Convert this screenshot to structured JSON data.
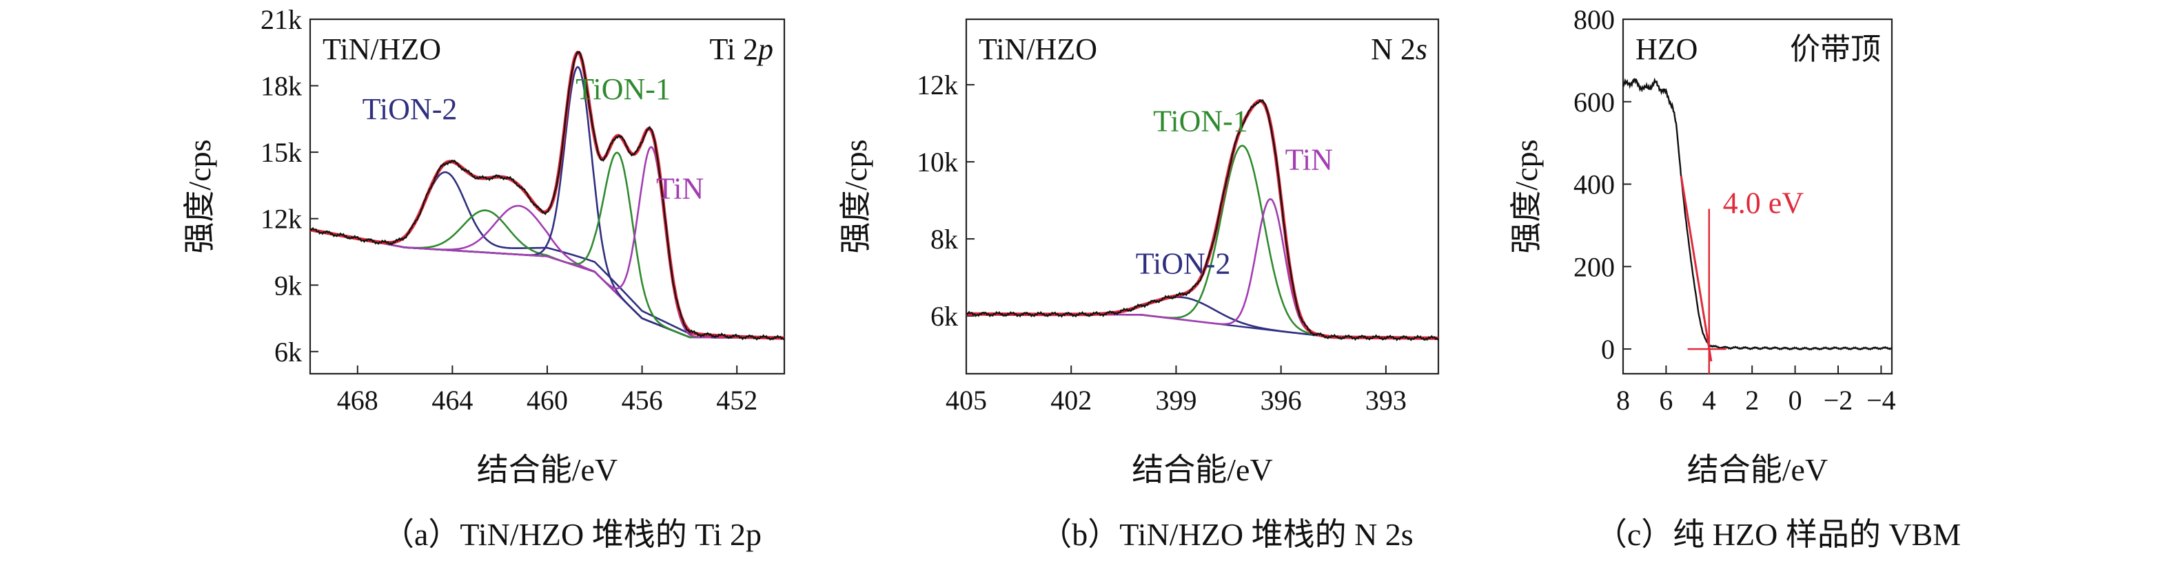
{
  "panels": [
    {
      "id": "a",
      "caption": "（a）TiN/HZO 堆栈的 Ti 2p",
      "chart_data": {
        "type": "line",
        "title": "",
        "xlabel": "结合能/eV",
        "ylabel": "强度/cps",
        "xlim": [
          470,
          450
        ],
        "ylim": [
          5000,
          21000
        ],
        "x_ticks": [
          468,
          464,
          460,
          456,
          452
        ],
        "x_tick_labels": [
          "468",
          "464",
          "460",
          "456",
          "452"
        ],
        "y_ticks": [
          6000,
          9000,
          12000,
          15000,
          18000,
          21000
        ],
        "y_tick_labels": [
          "6k",
          "9k",
          "12k",
          "15k",
          "18k",
          "21k"
        ],
        "annotations": [
          {
            "text": "TiN/HZO",
            "position": "top-left",
            "color": "#111111"
          },
          {
            "text": "Ti 2p",
            "position": "top-right",
            "color": "#111111"
          }
        ],
        "series": [
          {
            "name": "TiON-2",
            "color": "#2f2f80",
            "peaks": [
              [
                464.3,
                3450,
                0.85
              ],
              [
                458.3,
                450,
                3.0
              ]
            ]
          },
          {
            "name": "",
            "color": "#2f8a2f",
            "peaks": [
              [
                462.6,
                1900,
                0.95
              ]
            ]
          },
          {
            "name": "",
            "color": "#a23db2",
            "peaks": [
              [
                461.2,
                2200,
                1.0
              ]
            ]
          },
          {
            "name": "",
            "color": "#2f2f80",
            "peaks": [
              [
                458.7,
                9000,
                0.55
              ]
            ]
          },
          {
            "name": "TiON-1",
            "color": "#2f8a2f",
            "peaks": [
              [
                457.0,
                6400,
                0.6
              ]
            ]
          },
          {
            "name": "TiN",
            "color": "#a23db2",
            "peaks": [
              [
                455.6,
                7900,
                0.55
              ]
            ]
          }
        ],
        "background": [
          [
            470,
            11500
          ],
          [
            466,
            10700
          ],
          [
            460,
            10300
          ],
          [
            458,
            9600
          ],
          [
            456,
            7500
          ],
          [
            454,
            6650
          ],
          [
            450,
            6600
          ]
        ],
        "series_labels": [
          {
            "text": "TiON-2",
            "x": 465.8,
            "y": 16500,
            "color": "#2f2f80"
          },
          {
            "text": "TiON-1",
            "x": 456.8,
            "y": 17400,
            "color": "#2f8a2f"
          },
          {
            "text": "TiN",
            "x": 454.4,
            "y": 12900,
            "color": "#a23db2"
          }
        ]
      }
    },
    {
      "id": "b",
      "caption": "（b）TiN/HZO 堆栈的 N 2s",
      "chart_data": {
        "type": "line",
        "title": "",
        "xlabel": "结合能/eV",
        "ylabel": "强度/cps",
        "xlim": [
          405,
          391.5
        ],
        "ylim": [
          4500,
          13700
        ],
        "x_ticks": [
          405,
          402,
          399,
          396,
          393
        ],
        "x_tick_labels": [
          "405",
          "402",
          "399",
          "396",
          "393"
        ],
        "y_ticks": [
          6000,
          8000,
          10000,
          12000
        ],
        "y_tick_labels": [
          "6k",
          "8k",
          "10k",
          "12k"
        ],
        "annotations": [
          {
            "text": "TiN/HZO",
            "position": "top-left",
            "color": "#111111"
          },
          {
            "text": "N 2s",
            "position": "top-right",
            "color": "#111111"
          }
        ],
        "series": [
          {
            "name": "TiON-2",
            "color": "#2f2f80",
            "peaks": [
              [
                398.8,
                580,
                0.9
              ]
            ]
          },
          {
            "name": "TiON-1",
            "color": "#2f8a2f",
            "peaks": [
              [
                397.1,
                4700,
                0.6
              ]
            ]
          },
          {
            "name": "TiN",
            "color": "#a23db2",
            "peaks": [
              [
                396.3,
                3400,
                0.4
              ]
            ]
          }
        ],
        "background": [
          [
            405,
            6050
          ],
          [
            400,
            6030
          ],
          [
            396,
            5600
          ],
          [
            394.5,
            5450
          ],
          [
            391.5,
            5420
          ]
        ],
        "series_labels": [
          {
            "text": "TiON-1",
            "x": 398.3,
            "y": 10800,
            "color": "#2f8a2f"
          },
          {
            "text": "TiN",
            "x": 395.2,
            "y": 9800,
            "color": "#a23db2"
          },
          {
            "text": "TiON-2",
            "x": 398.8,
            "y": 7100,
            "color": "#2f2f80"
          }
        ]
      }
    },
    {
      "id": "c",
      "caption": "（c）纯 HZO 样品的 VBM",
      "chart_data": {
        "type": "line",
        "title": "",
        "xlabel": "结合能/eV",
        "ylabel": "强度/cps",
        "xlim": [
          8,
          -4.5
        ],
        "ylim": [
          -60,
          800
        ],
        "x_ticks": [
          8,
          6,
          4,
          2,
          0,
          -2,
          -4
        ],
        "x_tick_labels": [
          "8",
          "6",
          "4",
          "2",
          "0",
          "−2",
          "−4"
        ],
        "y_ticks": [
          0,
          200,
          400,
          600,
          800
        ],
        "y_tick_labels": [
          "0",
          "200",
          "400",
          "600",
          "800"
        ],
        "annotations": [
          {
            "text": "HZO",
            "position": "top-left",
            "color": "#111111"
          },
          {
            "text": "价带顶",
            "position": "top-right",
            "color": "#111111"
          },
          {
            "text": "4.0 eV",
            "position": "mid-right",
            "color": "#e02a3a"
          }
        ],
        "spectrum": {
          "x": [
            8.0,
            7.5,
            7.0,
            6.5,
            6.0,
            5.7,
            5.5,
            5.3,
            5.1,
            4.9,
            4.7,
            4.5,
            4.3,
            4.15,
            4.0,
            3.8,
            3.5,
            3.0,
            2.0,
            1.0,
            0.0,
            -1.0,
            -2.0,
            -3.0,
            -4.0,
            -4.5
          ],
          "y": [
            640,
            650,
            630,
            645,
            620,
            590,
            530,
            420,
            320,
            240,
            160,
            90,
            40,
            20,
            10,
            6,
            4,
            3,
            2,
            2,
            1,
            1,
            2,
            1,
            2,
            2
          ]
        },
        "fit_line": {
          "x": [
            5.3,
            3.9
          ],
          "y": [
            420,
            -30
          ]
        },
        "vbm_value": 4.0,
        "baseline_marker": {
          "x": [
            5.0,
            3.2
          ],
          "y": [
            0,
            0
          ]
        }
      }
    }
  ]
}
